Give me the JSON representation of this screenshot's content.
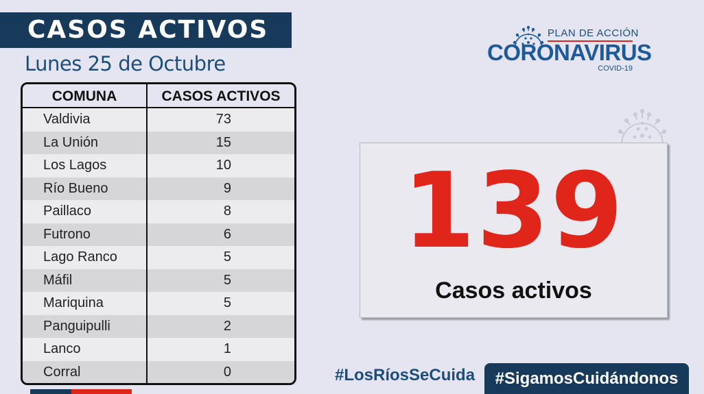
{
  "header": {
    "title": "CASOS ACTIVOS",
    "date": "Lunes 25 de Octubre"
  },
  "logo": {
    "top": "PLAN DE ACCIÓN",
    "main": "CORONAVIRUS",
    "sub": "COVID-19",
    "icon": "virus-icon"
  },
  "colors": {
    "navy": "#173a5a",
    "red": "#e0251b",
    "blue": "#1d5a97",
    "background": "#e4e5f1"
  },
  "table": {
    "headers": [
      "COMUNA",
      "CASOS ACTIVOS"
    ],
    "rows": [
      {
        "comuna": "Valdivia",
        "casos": "73"
      },
      {
        "comuna": "La Unión",
        "casos": "15"
      },
      {
        "comuna": "Los Lagos",
        "casos": "10"
      },
      {
        "comuna": "Río Bueno",
        "casos": "9"
      },
      {
        "comuna": "Paillaco",
        "casos": "8"
      },
      {
        "comuna": "Futrono",
        "casos": "6"
      },
      {
        "comuna": "Lago Ranco",
        "casos": "5"
      },
      {
        "comuna": "Máfil",
        "casos": "5"
      },
      {
        "comuna": "Mariquina",
        "casos": "5"
      },
      {
        "comuna": "Panguipulli",
        "casos": "2"
      },
      {
        "comuna": "Lanco",
        "casos": "1"
      },
      {
        "comuna": "Corral",
        "casos": "0"
      }
    ]
  },
  "total": {
    "value": "139",
    "label": "Casos activos"
  },
  "hashtags": {
    "first": "#LosRíosSeCuida",
    "second": "#SigamosCuidándonos"
  }
}
